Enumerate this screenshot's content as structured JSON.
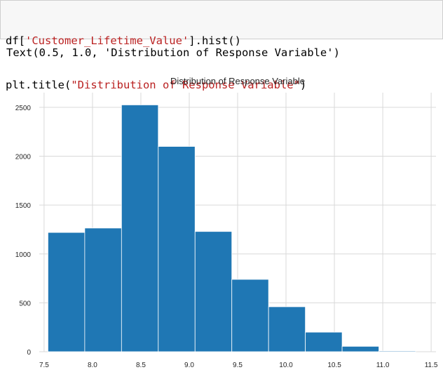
{
  "code_cell": {
    "line1": {
      "pre": "df[",
      "str": "'Customer_Lifetime_Value'",
      "post": "].hist()"
    },
    "line2": {
      "pre": "plt.title(",
      "str": "\"Distribution of Response Variable\"",
      "post": ")"
    }
  },
  "output": {
    "text": "Text(0.5, 1.0, 'Distribution of Response Variable')"
  },
  "chart_data": {
    "type": "bar",
    "title": "Distribution of Response Variable",
    "xlabel": "",
    "ylabel": "",
    "xlim": [
      7.45,
      11.55
    ],
    "ylim": [
      0,
      2650
    ],
    "xticks": [
      "7.5",
      "8.0",
      "8.5",
      "9.0",
      "9.5",
      "10.0",
      "10.5",
      "11.0",
      "11.5"
    ],
    "xtick_values": [
      7.5,
      8.0,
      8.5,
      9.0,
      9.5,
      10.0,
      10.5,
      11.0,
      11.5
    ],
    "yticks": [
      "0",
      "500",
      "1000",
      "1500",
      "2000",
      "2500"
    ],
    "ytick_values": [
      0,
      500,
      1000,
      1500,
      2000,
      2500
    ],
    "bin_edges": [
      7.54,
      7.92,
      8.3,
      8.68,
      9.06,
      9.44,
      9.82,
      10.2,
      10.58,
      10.96,
      11.34
    ],
    "values": [
      1220,
      1265,
      2525,
      2100,
      1230,
      740,
      460,
      200,
      55,
      8
    ],
    "bar_color": "#1f77b4",
    "grid": true
  }
}
